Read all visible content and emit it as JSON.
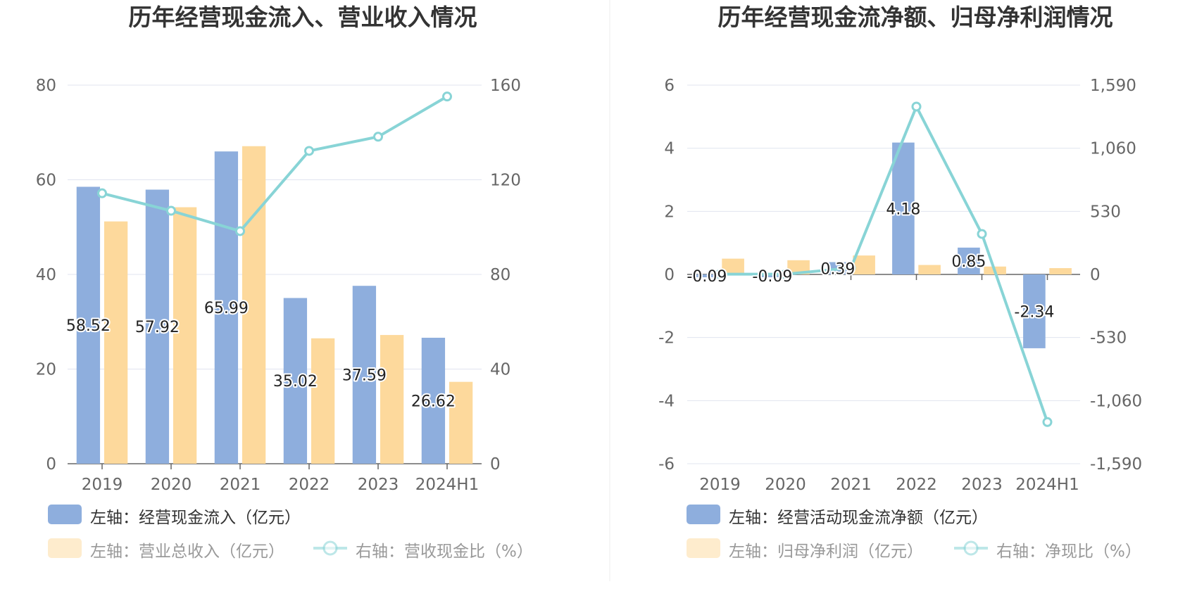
{
  "colors": {
    "blue": "#8eaedd",
    "orange": "#fdd99c",
    "line": "#88d4d6",
    "grid": "#e0e4ef",
    "axis": "#666666"
  },
  "chart_data": [
    {
      "type": "bar",
      "title": "历年经营现金流入、营业收入情况",
      "categories": [
        "2019",
        "2020",
        "2021",
        "2022",
        "2023",
        "2024H1"
      ],
      "left_axis": {
        "min": 0,
        "max": 80,
        "ticks": [
          "0",
          "20",
          "40",
          "60",
          "80"
        ]
      },
      "right_axis": {
        "min": 0,
        "max": 160,
        "ticks": [
          "0",
          "40",
          "80",
          "120",
          "160"
        ]
      },
      "series": [
        {
          "name": "左轴：经营现金流入（亿元）",
          "kind": "bar",
          "axis": "left",
          "color": "#8eaedd",
          "values": [
            58.52,
            57.92,
            65.99,
            35.02,
            37.59,
            26.62
          ],
          "labels": [
            "58.52",
            "57.92",
            "65.99",
            "35.02",
            "37.59",
            "26.62"
          ]
        },
        {
          "name": "左轴：营业总收入（亿元）",
          "kind": "bar",
          "axis": "left",
          "color": "#fdd99c",
          "values": [
            51.2,
            54.2,
            67.1,
            26.5,
            27.2,
            17.3
          ]
        },
        {
          "name": "右轴：营收现金比（%）",
          "kind": "line",
          "axis": "right",
          "color": "#88d4d6",
          "values": [
            114.3,
            106.9,
            98.3,
            132.2,
            138.2,
            155.2
          ]
        }
      ],
      "legend": [
        {
          "label": "左轴：经营现金流入（亿元）",
          "kind": "bar",
          "color": "#8eaedd",
          "dim": false
        },
        {
          "label": "左轴：营业总收入（亿元）",
          "kind": "bar",
          "color": "#fdd99c",
          "dim": true
        },
        {
          "label": "右轴：营收现金比（%）",
          "kind": "line",
          "color": "#88d4d6",
          "dim": true
        }
      ]
    },
    {
      "type": "bar",
      "title": "历年经营现金流净额、归母净利润情况",
      "categories": [
        "2019",
        "2020",
        "2021",
        "2022",
        "2023",
        "2024H1"
      ],
      "left_axis": {
        "min": -6,
        "max": 6,
        "ticks": [
          "-6",
          "-4",
          "-2",
          "0",
          "2",
          "4",
          "6"
        ]
      },
      "right_axis": {
        "min": -1590,
        "max": 1590,
        "ticks": [
          "-1,590",
          "-1,060",
          "-530",
          "0",
          "530",
          "1,060",
          "1,590"
        ]
      },
      "series": [
        {
          "name": "左轴：经营活动现金流净额（亿元）",
          "kind": "bar",
          "axis": "left",
          "color": "#8eaedd",
          "values": [
            -0.09,
            -0.09,
            0.39,
            4.18,
            0.85,
            -2.34
          ],
          "labels": [
            "-0.09",
            "-0.09",
            "0.39",
            "4.18",
            "0.85",
            "-2.34"
          ]
        },
        {
          "name": "左轴：归母净利润（亿元）",
          "kind": "bar",
          "axis": "left",
          "color": "#fdd99c",
          "values": [
            0.5,
            0.45,
            0.6,
            0.3,
            0.25,
            0.2
          ]
        },
        {
          "name": "右轴：净现比（%）",
          "kind": "line",
          "axis": "right",
          "color": "#88d4d6",
          "values": [
            2,
            2,
            55,
            1410,
            340,
            -1240
          ]
        }
      ],
      "legend": [
        {
          "label": "左轴：经营活动现金流净额（亿元）",
          "kind": "bar",
          "color": "#8eaedd",
          "dim": false
        },
        {
          "label": "左轴：归母净利润（亿元）",
          "kind": "bar",
          "color": "#fdd99c",
          "dim": true
        },
        {
          "label": "右轴：净现比（%）",
          "kind": "line",
          "color": "#88d4d6",
          "dim": true
        }
      ]
    }
  ]
}
